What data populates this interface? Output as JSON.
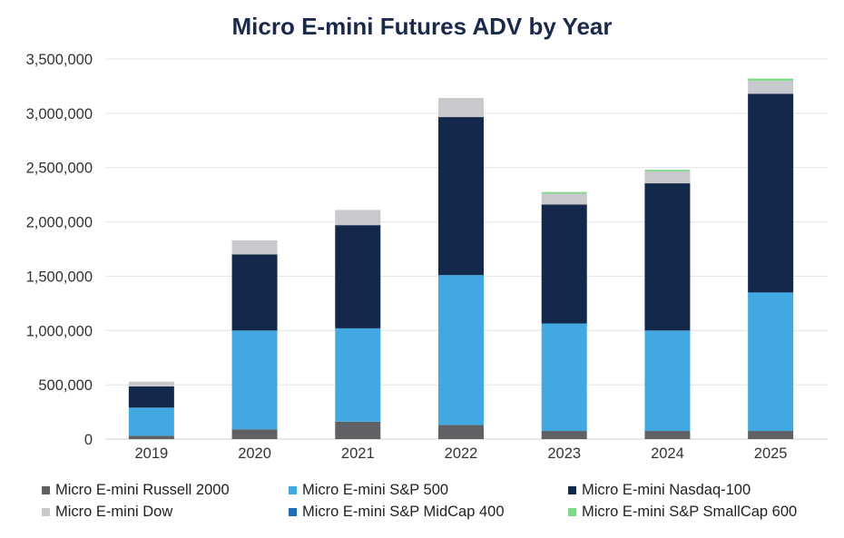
{
  "chart_data": {
    "type": "bar",
    "stacked": true,
    "title": "Micro E-mini Futures ADV by Year",
    "xlabel": "",
    "ylabel": "",
    "ylim": [
      0,
      3500000
    ],
    "yticks": [
      0,
      500000,
      1000000,
      1500000,
      2000000,
      2500000,
      3000000,
      3500000
    ],
    "ytick_labels": [
      "0",
      "500,000",
      "1,000,000",
      "1,500,000",
      "2,000,000",
      "2,500,000",
      "3,000,000",
      "3,500,000"
    ],
    "grid": true,
    "legend_position": "bottom",
    "categories": [
      "2019",
      "2020",
      "2021",
      "2022",
      "2023",
      "2024",
      "2025"
    ],
    "series": [
      {
        "name": "Micro E-mini Russell 2000",
        "color": "#5f6164",
        "values": [
          30000,
          90000,
          160000,
          130000,
          75000,
          75000,
          75000
        ]
      },
      {
        "name": "Micro E-mini S&P 500",
        "color": "#41a8e1",
        "values": [
          260000,
          910000,
          860000,
          1380000,
          990000,
          925000,
          1275000
        ]
      },
      {
        "name": "Micro E-mini Nasdaq-100",
        "color": "#14284b",
        "values": [
          195000,
          700000,
          950000,
          1455000,
          1095000,
          1355000,
          1830000
        ]
      },
      {
        "name": "Micro E-mini Dow",
        "color": "#c8c9cc",
        "values": [
          45000,
          130000,
          140000,
          175000,
          100000,
          110000,
          120000
        ]
      },
      {
        "name": "Micro E-mini S&P MidCap 400",
        "color": "#1f6eb5",
        "values": [
          0,
          0,
          0,
          0,
          0,
          0,
          0
        ]
      },
      {
        "name": "Micro E-mini S&P SmallCap 600",
        "color": "#7fd98a",
        "values": [
          0,
          0,
          0,
          0,
          15000,
          15000,
          20000
        ]
      }
    ]
  }
}
